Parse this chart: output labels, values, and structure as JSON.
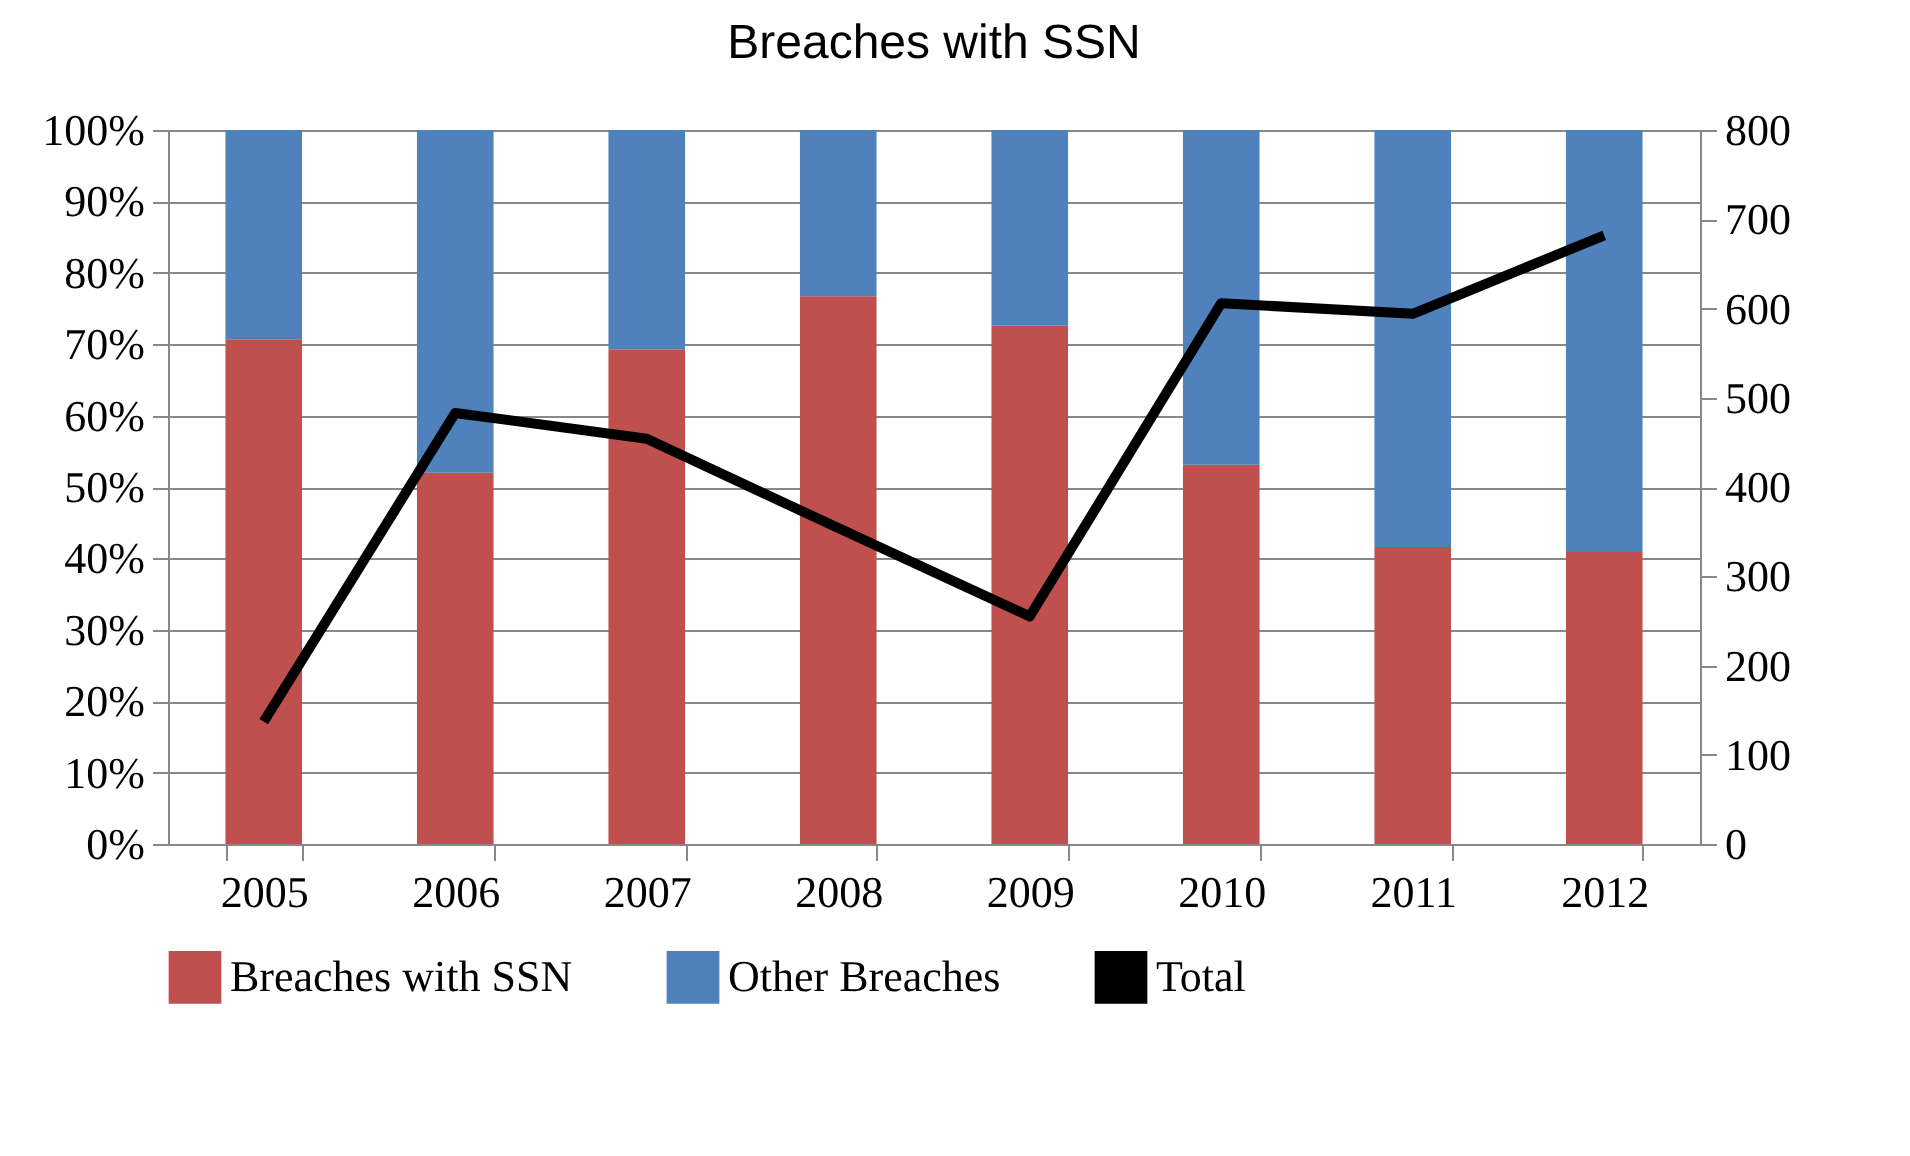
{
  "chart_data": {
    "type": "bar",
    "title": "Breaches with SSN",
    "categories": [
      "2005",
      "2006",
      "2007",
      "2008",
      "2009",
      "2010",
      "2011",
      "2012"
    ],
    "stacked": true,
    "series": [
      {
        "name": "Breaches with SSN",
        "color": "#c0504d",
        "values": [
          70.7,
          52,
          69.3,
          76.7,
          72.6,
          53.1,
          41.6,
          40.9
        ]
      },
      {
        "name": "Other Breaches",
        "color": "#4f81bd",
        "values": [
          29.3,
          48,
          30.7,
          23.3,
          27.4,
          46.9,
          58.4,
          59.1
        ]
      },
      {
        "name": "Total",
        "type": "line",
        "axis": "y2",
        "color": "#000000",
        "values": [
          137,
          483,
          454,
          354,
          255,
          606,
          594,
          682
        ]
      }
    ],
    "ylim": [
      0,
      100
    ],
    "yticks": [
      {
        "value": 0,
        "label": "0%"
      },
      {
        "value": 10,
        "label": "10%"
      },
      {
        "value": 20,
        "label": "20%"
      },
      {
        "value": 30,
        "label": "30%"
      },
      {
        "value": 40,
        "label": "40%"
      },
      {
        "value": 50,
        "label": "50%"
      },
      {
        "value": 60,
        "label": "60%"
      },
      {
        "value": 70,
        "label": "70%"
      },
      {
        "value": 80,
        "label": "80%"
      },
      {
        "value": 90,
        "label": "90%"
      },
      {
        "value": 100,
        "label": "100%"
      }
    ],
    "y2lim": [
      0,
      800
    ],
    "y2ticks": [
      0,
      100,
      200,
      300,
      400,
      500,
      600,
      700,
      800
    ],
    "legend": "bottom",
    "grid": "y",
    "marker": "none"
  }
}
